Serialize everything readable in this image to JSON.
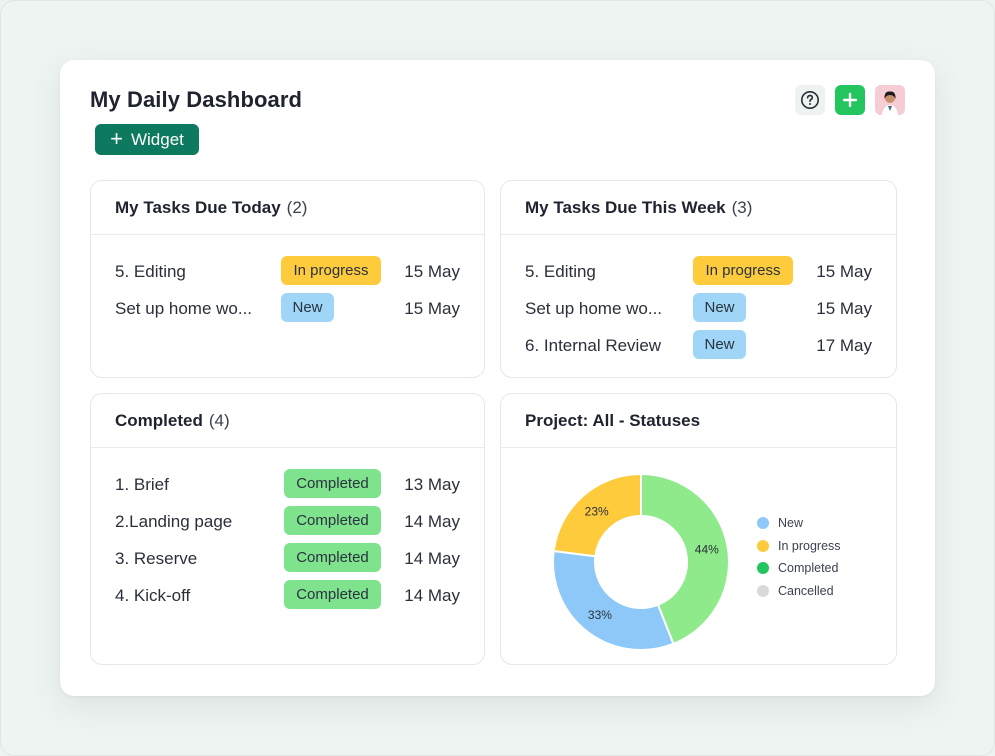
{
  "dashboard": {
    "title": "My Daily Dashboard",
    "widget_button_label": "Widget"
  },
  "panels": {
    "today": {
      "title": "My Tasks Due Today",
      "count": "(2)",
      "rows": [
        {
          "name": "5. Editing",
          "status": "In progress",
          "date": "15 May"
        },
        {
          "name": "Set up home wo...",
          "status": "New",
          "date": "15 May"
        }
      ]
    },
    "week": {
      "title": "My Tasks Due This Week",
      "count": "(3)",
      "rows": [
        {
          "name": "5. Editing",
          "status": "In progress",
          "date": "15 May"
        },
        {
          "name": "Set up home wo...",
          "status": "New",
          "date": "15 May"
        },
        {
          "name": "6. Internal Review",
          "status": "New",
          "date": "17 May"
        }
      ]
    },
    "completed": {
      "title": "Completed",
      "count": "(4)",
      "rows": [
        {
          "name": "1. Brief",
          "status": "Completed",
          "date": "13 May"
        },
        {
          "name": "2.Landing page",
          "status": "Completed",
          "date": "14 May"
        },
        {
          "name": "3. Reserve",
          "status": "Completed",
          "date": "14 May"
        },
        {
          "name": "4. Kick-off",
          "status": "Completed",
          "date": "14 May"
        }
      ]
    },
    "project": {
      "title": "Project: All - Statuses"
    }
  },
  "colors": {
    "brand": "#0d7a5f",
    "in_progress": "#fdcb3c",
    "new": "#9fd6f7",
    "completed_badge": "#7fe38d",
    "chart_new": "#8ec8f8",
    "chart_in_progress": "#fdcb3c",
    "chart_completed": "#8eea8b",
    "chart_completed_legend": "#22c55e",
    "chart_cancelled": "#d9d9d9"
  },
  "icons": [
    "plus-icon",
    "help-icon",
    "avatar"
  ],
  "chart_data": {
    "type": "pie",
    "title": "Project: All - Statuses",
    "donut": true,
    "legend_position": "right",
    "legend": [
      "New",
      "In progress",
      "Completed",
      "Cancelled"
    ],
    "series": [
      {
        "name": "New",
        "value": 33,
        "label": "33%"
      },
      {
        "name": "In progress",
        "value": 23,
        "label": "23%"
      },
      {
        "name": "Completed",
        "value": 44,
        "label": "44%"
      },
      {
        "name": "Cancelled",
        "value": 0,
        "label": ""
      }
    ]
  }
}
